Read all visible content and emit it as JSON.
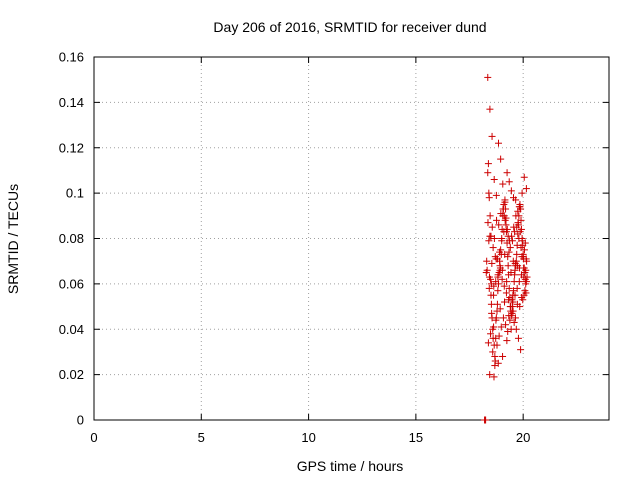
{
  "chart_data": {
    "type": "scatter",
    "title": "Day 206 of 2016, SRMTID for receiver dund",
    "xlabel": "GPS time / hours",
    "ylabel": "SRMTID / TECUs",
    "xlim": [
      0,
      24
    ],
    "ylim": [
      0,
      0.16
    ],
    "xticks": [
      0,
      5,
      10,
      15,
      20
    ],
    "xtick_labels": [
      "0",
      "5",
      "10",
      "15",
      "20"
    ],
    "yticks": [
      0,
      0.02,
      0.04,
      0.06,
      0.08,
      0.1,
      0.12,
      0.14,
      0.16
    ],
    "ytick_labels": [
      "0",
      "0.02",
      "0.04",
      "0.06",
      "0.08",
      "0.1",
      "0.12",
      "0.14",
      "0.16"
    ],
    "grid": true,
    "marker": "plus",
    "color": "#cc0000",
    "series": [
      {
        "name": "SRMTID",
        "x": [
          18.2,
          18.22,
          18.25,
          18.28,
          18.3,
          18.32,
          18.35,
          18.38,
          18.4,
          18.42,
          18.45,
          18.48,
          18.5,
          18.52,
          18.55,
          18.58,
          18.6,
          18.62,
          18.65,
          18.68,
          18.7,
          18.72,
          18.75,
          18.78,
          18.8,
          18.82,
          18.85,
          18.88,
          18.9,
          18.92,
          18.95,
          18.98,
          19.0,
          19.02,
          19.05,
          19.08,
          19.1,
          19.12,
          19.15,
          19.18,
          19.2,
          19.22,
          19.25,
          19.28,
          19.3,
          19.32,
          19.35,
          19.38,
          19.4,
          19.42,
          19.45,
          19.48,
          19.5,
          19.52,
          19.55,
          19.58,
          19.6,
          19.62,
          19.65,
          19.68,
          19.7,
          19.72,
          19.75,
          19.78,
          19.8,
          19.82,
          19.85,
          19.88,
          19.9,
          19.92,
          19.95,
          19.98,
          20.0,
          20.02,
          20.05,
          20.08,
          20.1,
          20.12,
          20.15,
          20.18,
          18.35,
          18.45,
          18.55,
          18.65,
          18.75,
          18.85,
          18.95,
          19.05,
          19.15,
          19.25,
          19.35,
          19.45,
          19.55,
          19.65,
          19.75,
          19.85,
          19.95,
          20.05,
          20.15,
          18.4,
          18.5,
          18.6,
          18.7,
          18.8,
          18.9,
          19.0,
          19.1,
          19.2,
          19.3,
          19.4,
          19.5,
          19.6,
          19.7,
          19.8,
          19.9,
          20.0,
          20.1,
          18.42,
          18.52,
          18.62,
          18.72,
          18.82,
          18.92,
          19.02,
          19.12,
          19.22,
          19.32,
          19.42,
          19.52,
          19.62,
          19.72,
          19.82,
          19.92,
          20.02,
          20.12,
          18.38,
          18.48,
          18.58,
          18.68,
          18.78,
          18.88,
          18.98,
          19.08,
          19.18,
          19.28,
          19.38,
          19.48,
          19.58,
          19.68,
          19.78,
          19.88,
          19.98,
          20.08,
          18.44,
          18.64,
          18.84,
          19.04,
          19.24,
          19.44,
          19.64,
          19.84,
          20.04,
          18.54,
          18.74,
          18.94,
          19.14,
          19.34,
          19.54,
          19.74,
          19.94,
          20.14,
          18.36,
          18.46,
          18.56,
          18.66,
          18.76,
          18.86,
          18.96,
          19.06,
          19.16,
          19.26,
          19.36,
          19.46,
          19.56,
          19.66,
          19.76,
          19.86,
          19.96,
          20.06,
          20.16,
          18.43,
          18.63,
          18.83,
          19.03,
          19.23,
          19.43,
          19.63,
          19.83,
          20.03,
          18.53,
          18.73,
          18.93,
          19.13,
          19.33,
          19.53,
          19.73,
          19.93,
          20.13
        ],
        "y": [
          0.0,
          0.0,
          0.0,
          0.065,
          0.07,
          0.066,
          0.109,
          0.113,
          0.1,
          0.098,
          0.081,
          0.062,
          0.055,
          0.051,
          0.045,
          0.04,
          0.036,
          0.041,
          0.033,
          0.024,
          0.026,
          0.036,
          0.045,
          0.048,
          0.051,
          0.057,
          0.06,
          0.065,
          0.07,
          0.068,
          0.075,
          0.073,
          0.08,
          0.084,
          0.09,
          0.093,
          0.095,
          0.09,
          0.097,
          0.093,
          0.089,
          0.083,
          0.078,
          0.072,
          0.068,
          0.064,
          0.058,
          0.054,
          0.05,
          0.048,
          0.046,
          0.053,
          0.05,
          0.055,
          0.057,
          0.061,
          0.064,
          0.066,
          0.068,
          0.07,
          0.073,
          0.077,
          0.082,
          0.086,
          0.09,
          0.094,
          0.095,
          0.093,
          0.088,
          0.084,
          0.08,
          0.077,
          0.073,
          0.071,
          0.067,
          0.065,
          0.062,
          0.06,
          0.061,
          0.063,
          0.151,
          0.137,
          0.125,
          0.106,
          0.099,
          0.122,
          0.115,
          0.104,
          0.096,
          0.109,
          0.105,
          0.101,
          0.098,
          0.097,
          0.092,
          0.094,
          0.1,
          0.107,
          0.102,
          0.079,
          0.081,
          0.076,
          0.072,
          0.071,
          0.074,
          0.079,
          0.083,
          0.086,
          0.081,
          0.076,
          0.079,
          0.083,
          0.085,
          0.08,
          0.076,
          0.072,
          0.078,
          0.058,
          0.06,
          0.055,
          0.061,
          0.063,
          0.066,
          0.062,
          0.059,
          0.056,
          0.053,
          0.05,
          0.052,
          0.055,
          0.058,
          0.061,
          0.064,
          0.067,
          0.066,
          0.034,
          0.038,
          0.03,
          0.028,
          0.033,
          0.037,
          0.041,
          0.045,
          0.042,
          0.039,
          0.044,
          0.047,
          0.043,
          0.04,
          0.036,
          0.031,
          0.053,
          0.057,
          0.02,
          0.019,
          0.025,
          0.028,
          0.035,
          0.04,
          0.045,
          0.05,
          0.055,
          0.069,
          0.071,
          0.067,
          0.073,
          0.074,
          0.07,
          0.068,
          0.072,
          0.071,
          0.087,
          0.09,
          0.085,
          0.08,
          0.088,
          0.086,
          0.091,
          0.093,
          0.088,
          0.084,
          0.079,
          0.081,
          0.085,
          0.09,
          0.087,
          0.083,
          0.079,
          0.075,
          0.07,
          0.063,
          0.059,
          0.064,
          0.066,
          0.061,
          0.065,
          0.069,
          0.067,
          0.063,
          0.047,
          0.044,
          0.049,
          0.052,
          0.046,
          0.048,
          0.051,
          0.054,
          0.056
        ]
      }
    ]
  }
}
